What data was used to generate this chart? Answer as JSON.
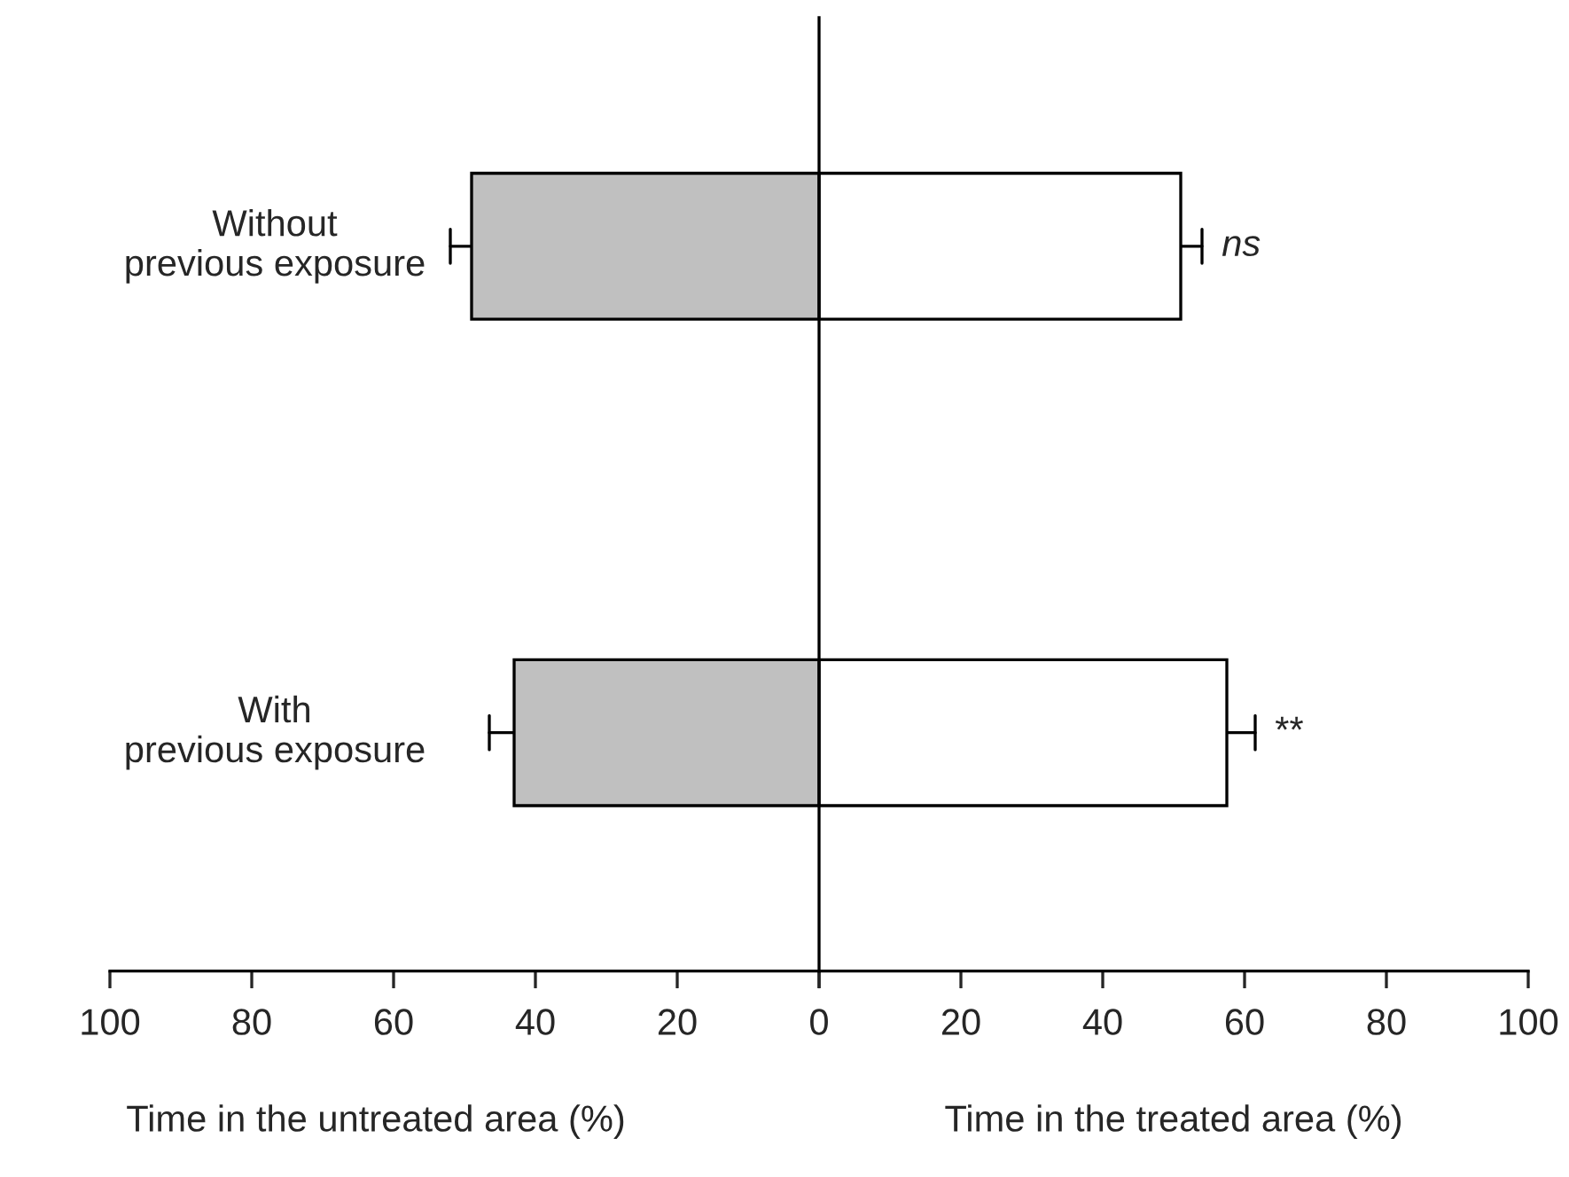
{
  "chart_data": [
    {
      "type": "bar",
      "orientation": "horizontal",
      "categories": [
        "Without\nprevious exposure",
        "With\nprevious exposure"
      ],
      "series": [
        {
          "color": "#c0c0c0",
          "values": [
            49,
            43
          ],
          "errors": [
            [
              49,
              52
            ],
            [
              43,
              46.5
            ]
          ]
        }
      ],
      "xlim": [
        100,
        0
      ],
      "xticks": [
        100,
        80,
        60,
        40,
        20,
        {
          "value": 0,
          "label": null
        }
      ],
      "annotations": [
        "Time in the untreated area (%)"
      ],
      "grid": false
    },
    {
      "type": "bar",
      "orientation": "horizontal",
      "categories": [
        null,
        null
      ],
      "series": [
        {
          "color": "#ffffff",
          "values": [
            51,
            57.5
          ],
          "errors": [
            [
              51,
              54
            ],
            [
              57.5,
              61.5
            ]
          ]
        }
      ],
      "xlim": [
        0,
        100
      ],
      "xticks": [
        0,
        20,
        40,
        60,
        80,
        100
      ],
      "annotations": [
        "ns",
        "**",
        "Time in the treated area (%)"
      ],
      "grid": false
    }
  ]
}
